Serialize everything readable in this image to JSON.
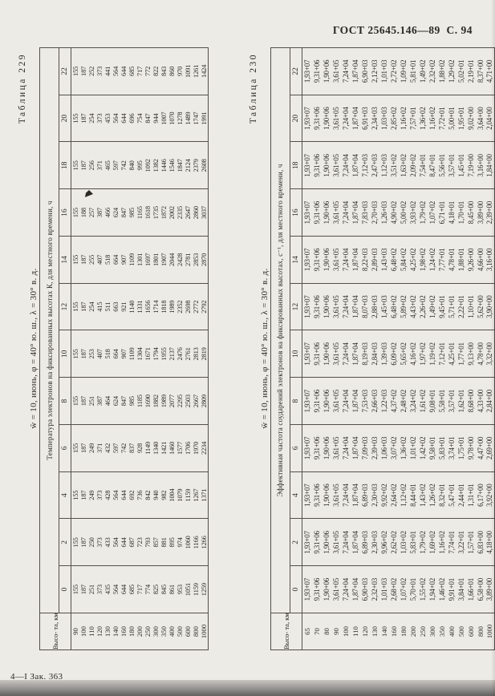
{
  "page": {
    "header_right": "ГОСТ 25645.146—89  С. 94",
    "footer_left": "4—I Зак. 363"
  },
  "t229": {
    "title": "Таблица 229",
    "caption": "w̄ = 10, июнь, φ = 40° ю. ш., λ = 30° в. д.",
    "corner_label": "Высо-\nта, км",
    "span_header": "Температура электронов на фиксированных высотах К, для местного времени, ч",
    "times": [
      "0",
      "2",
      "4",
      "6",
      "8",
      "10",
      "12",
      "14",
      "16",
      "18",
      "20",
      "22"
    ],
    "heights": [
      "90",
      "100",
      "110",
      "120",
      "130",
      "140",
      "160",
      "180",
      "200",
      "250",
      "300",
      "350",
      "400",
      "500",
      "600",
      "800",
      "1000"
    ],
    "rows": [
      [
        "155",
        "155",
        "155",
        "155",
        "155",
        "155",
        "155",
        "155",
        "155",
        "155",
        "155",
        "155"
      ],
      [
        "187",
        "187",
        "187",
        "187",
        "187",
        "187",
        "187",
        "187",
        "188",
        "187",
        "187",
        "187"
      ],
      [
        "251",
        "250",
        "249",
        "249",
        "251",
        "253",
        "254",
        "255",
        "257",
        "256",
        "254",
        "252"
      ],
      [
        "373",
        "373",
        "373",
        "371",
        "387",
        "407",
        "415",
        "407",
        "387",
        "371",
        "373",
        "373"
      ],
      [
        "435",
        "433",
        "428",
        "432",
        "464",
        "518",
        "511",
        "518",
        "466",
        "465",
        "453",
        "441"
      ],
      [
        "564",
        "564",
        "564",
        "597",
        "624",
        "664",
        "663",
        "664",
        "624",
        "597",
        "564",
        "564"
      ],
      [
        "644",
        "644",
        "644",
        "742",
        "847",
        "907",
        "921",
        "907",
        "847",
        "742",
        "644",
        "644"
      ],
      [
        "685",
        "687",
        "692",
        "837",
        "985",
        "1109",
        "1140",
        "1109",
        "985",
        "840",
        "696",
        "685"
      ],
      [
        "717",
        "723",
        "736",
        "928",
        "1185",
        "1304",
        "1331",
        "1301",
        "1165",
        "995",
        "754",
        "717"
      ],
      [
        "774",
        "793",
        "842",
        "1149",
        "1690",
        "1671",
        "1656",
        "1697",
        "1618",
        "1092",
        "847",
        "772"
      ],
      [
        "825",
        "857",
        "940",
        "1340",
        "1882",
        "1794",
        "1714",
        "1801",
        "1735",
        "1382",
        "944",
        "822"
      ],
      [
        "845",
        "881",
        "982",
        "1421",
        "1989",
        "1955",
        "1818",
        "1907",
        "1872",
        "1446",
        "1007",
        "843"
      ],
      [
        "861",
        "895",
        "1004",
        "1460",
        "2077",
        "2137",
        "1989",
        "2044",
        "2002",
        "1546",
        "1070",
        "860"
      ],
      [
        "953",
        "974",
        "1079",
        "1577",
        "2295",
        "2476",
        "2352",
        "2428",
        "2335",
        "1847",
        "1278",
        "970"
      ],
      [
        "1051",
        "1060",
        "1159",
        "1706",
        "2503",
        "2761",
        "2698",
        "2781",
        "2647",
        "2124",
        "1489",
        "1091"
      ],
      [
        "1159",
        "1166",
        "1267",
        "1970",
        "2667",
        "2813",
        "2772",
        "2853",
        "2860",
        "2379",
        "1747",
        "1261"
      ],
      [
        "1259",
        "1266",
        "1371",
        "2234",
        "2809",
        "2819",
        "2792",
        "2870",
        "3037",
        "2608",
        "1991",
        "1424"
      ]
    ]
  },
  "t230": {
    "title": "Таблица 230",
    "caption": "w̄ = 10, июнь, φ = 40° ю. ш., λ = 30° в. д.",
    "corner_label": "Высо-\nта, км",
    "span_header": "Эффективная частота соударений электронов на фиксированных высотах, с⁻¹, для местного времени, ч",
    "times": [
      "0",
      "2",
      "4",
      "6",
      "8",
      "10",
      "12",
      "14",
      "16",
      "18",
      "20",
      "22"
    ],
    "heights": [
      "65",
      "70",
      "80",
      "90",
      "100",
      "110",
      "120",
      "130",
      "140",
      "160",
      "180",
      "200",
      "250",
      "300",
      "350",
      "400",
      "500",
      "600",
      "800",
      "1000"
    ],
    "rows": [
      [
        "1,93+07",
        "1,93+07",
        "1,93+07",
        "1,93+07",
        "1,93+07",
        "1,93+07",
        "1,93+07",
        "1,93+07",
        "1,93+07",
        "1,93+07",
        "1,93+07",
        "1,93+07"
      ],
      [
        "9,31+06",
        "9,31+06",
        "9,31+06",
        "9,31+06",
        "9,31+06",
        "9,31+06",
        "9,31+06",
        "9,31+06",
        "9,31+06",
        "9,31+06",
        "9,31+06",
        "9,31+06"
      ],
      [
        "1,90+06",
        "1,90+06",
        "1,90+06",
        "1,90+06",
        "1,90+06",
        "1,90+06",
        "1,90+06",
        "1,90+06",
        "1,90+06",
        "1,90+06",
        "1,90+06",
        "1,90+06"
      ],
      [
        "3,61+05",
        "3,61+05",
        "3,61+05",
        "3,61+05",
        "3,61+05",
        "3,61+05",
        "3,61+05",
        "3,61+05",
        "3,61+05",
        "3,61+05",
        "3,61+05",
        "3,61+05"
      ],
      [
        "7,24+04",
        "7,24+04",
        "7,24+04",
        "7,24+04",
        "7,24+04",
        "7,24+04",
        "7,24+04",
        "7,24+04",
        "7,24+04",
        "7,24+04",
        "7,24+04",
        "7,24+04"
      ],
      [
        "1,87+04",
        "1,87+04",
        "1,87+04",
        "1,87+04",
        "1,87+04",
        "1,87+04",
        "1,87+04",
        "1,87+04",
        "1,87+04",
        "1,87+04",
        "1,87+04",
        "1,87+04"
      ],
      [
        "6,90+03",
        "6,89+03",
        "6,89+03",
        "7,09+03",
        "7,53+03",
        "8,19+03",
        "8,07+03",
        "8,22+03",
        "7,83+03",
        "7,12+03",
        "6,91+03",
        "6,90+03"
      ],
      [
        "2,32+03",
        "2,30+03",
        "2,30+03",
        "2,39+03",
        "2,66+03",
        "2,84+03",
        "2,88+03",
        "2,89+03",
        "2,70+03",
        "2,47+03",
        "2,34+03",
        "2,12+03"
      ],
      [
        "1,01+03",
        "9,96+02",
        "9,92+02",
        "1,06+03",
        "1,22+03",
        "1,39+03",
        "1,45+03",
        "1,43+03",
        "1,26+03",
        "1,12+03",
        "1,03+03",
        "1,01+03"
      ],
      [
        "2,68+02",
        "2,62+02",
        "2,64+02",
        "3,07+02",
        "4,37+02",
        "6,09+02",
        "6,48+02",
        "6,48+02",
        "4,90+02",
        "3,51+02",
        "2,85+02",
        "2,72+02"
      ],
      [
        "1,07+02",
        "1,03+02",
        "1,12+02",
        "1,36+02",
        "2,48+02",
        "5,65+02",
        "5,89+02",
        "5,84+02",
        "5,00+02",
        "1,63+02",
        "1,16+02",
        "1,09+02"
      ],
      [
        "5,70+01",
        "5,83+01",
        "8,44+01",
        "1,01+02",
        "3,24+02",
        "4,16+02",
        "4,43+02",
        "4,25+02",
        "3,93+02",
        "2,09+02",
        "7,57+01",
        "5,81+01"
      ],
      [
        "1,55+02",
        "1,79+02",
        "1,43+02",
        "1,42+02",
        "1,61+02",
        "1,97+02",
        "2,26+02",
        "1,98+02",
        "1,79+02",
        "7,54+01",
        "1,36+02",
        "1,49+02"
      ],
      [
        "1,94+02",
        "1,69+02",
        "1,26+02",
        "9,58+01",
        "9,08+01",
        "1,19+02",
        "1,49+02",
        "1,24+02",
        "1,07+02",
        "8,47+01",
        "1,16+02",
        "2,32+02"
      ],
      [
        "1,46+02",
        "1,16+02",
        "8,32+01",
        "5,83+01",
        "5,58+01",
        "7,12+01",
        "9,45+01",
        "7,77+01",
        "6,71+01",
        "5,56+01",
        "7,72+01",
        "1,88+02"
      ],
      [
        "9,91+01",
        "7,74+01",
        "5,47+01",
        "3,74+01",
        "3,57+01",
        "4,25+01",
        "5,71+01",
        "4,78+01",
        "4,18+01",
        "3,57+01",
        "5,00+01",
        "1,29+02"
      ],
      [
        "3,84+01",
        "3,22+01",
        "2,44+01",
        "1,75+01",
        "1,62+01",
        "1,77+01",
        "2,22+01",
        "1,88+01",
        "1,70+01",
        "1,45+01",
        "1,95+01",
        "5,02+01"
      ],
      [
        "1,66+01",
        "1,57+01",
        "1,31+01",
        "9,78+00",
        "8,68+00",
        "9,13+00",
        "1,10+01",
        "9,26+00",
        "8,45+00",
        "7,19+00",
        "9,02+00",
        "2,19+01"
      ],
      [
        "6,58+00",
        "6,83+00",
        "6,17+00",
        "4,47+00",
        "4,33+00",
        "4,78+00",
        "5,62+00",
        "4,66+00",
        "3,89+00",
        "3,16+00",
        "3,64+00",
        "8,37+00"
      ],
      [
        "3,89+00",
        "4,18+00",
        "3,92+00",
        "2,69+00",
        "2,84+00",
        "3,32+00",
        "3,90+00",
        "3,16+00",
        "2,39+00",
        "1,84+00",
        "2,04+00",
        "4,71+00"
      ]
    ]
  }
}
